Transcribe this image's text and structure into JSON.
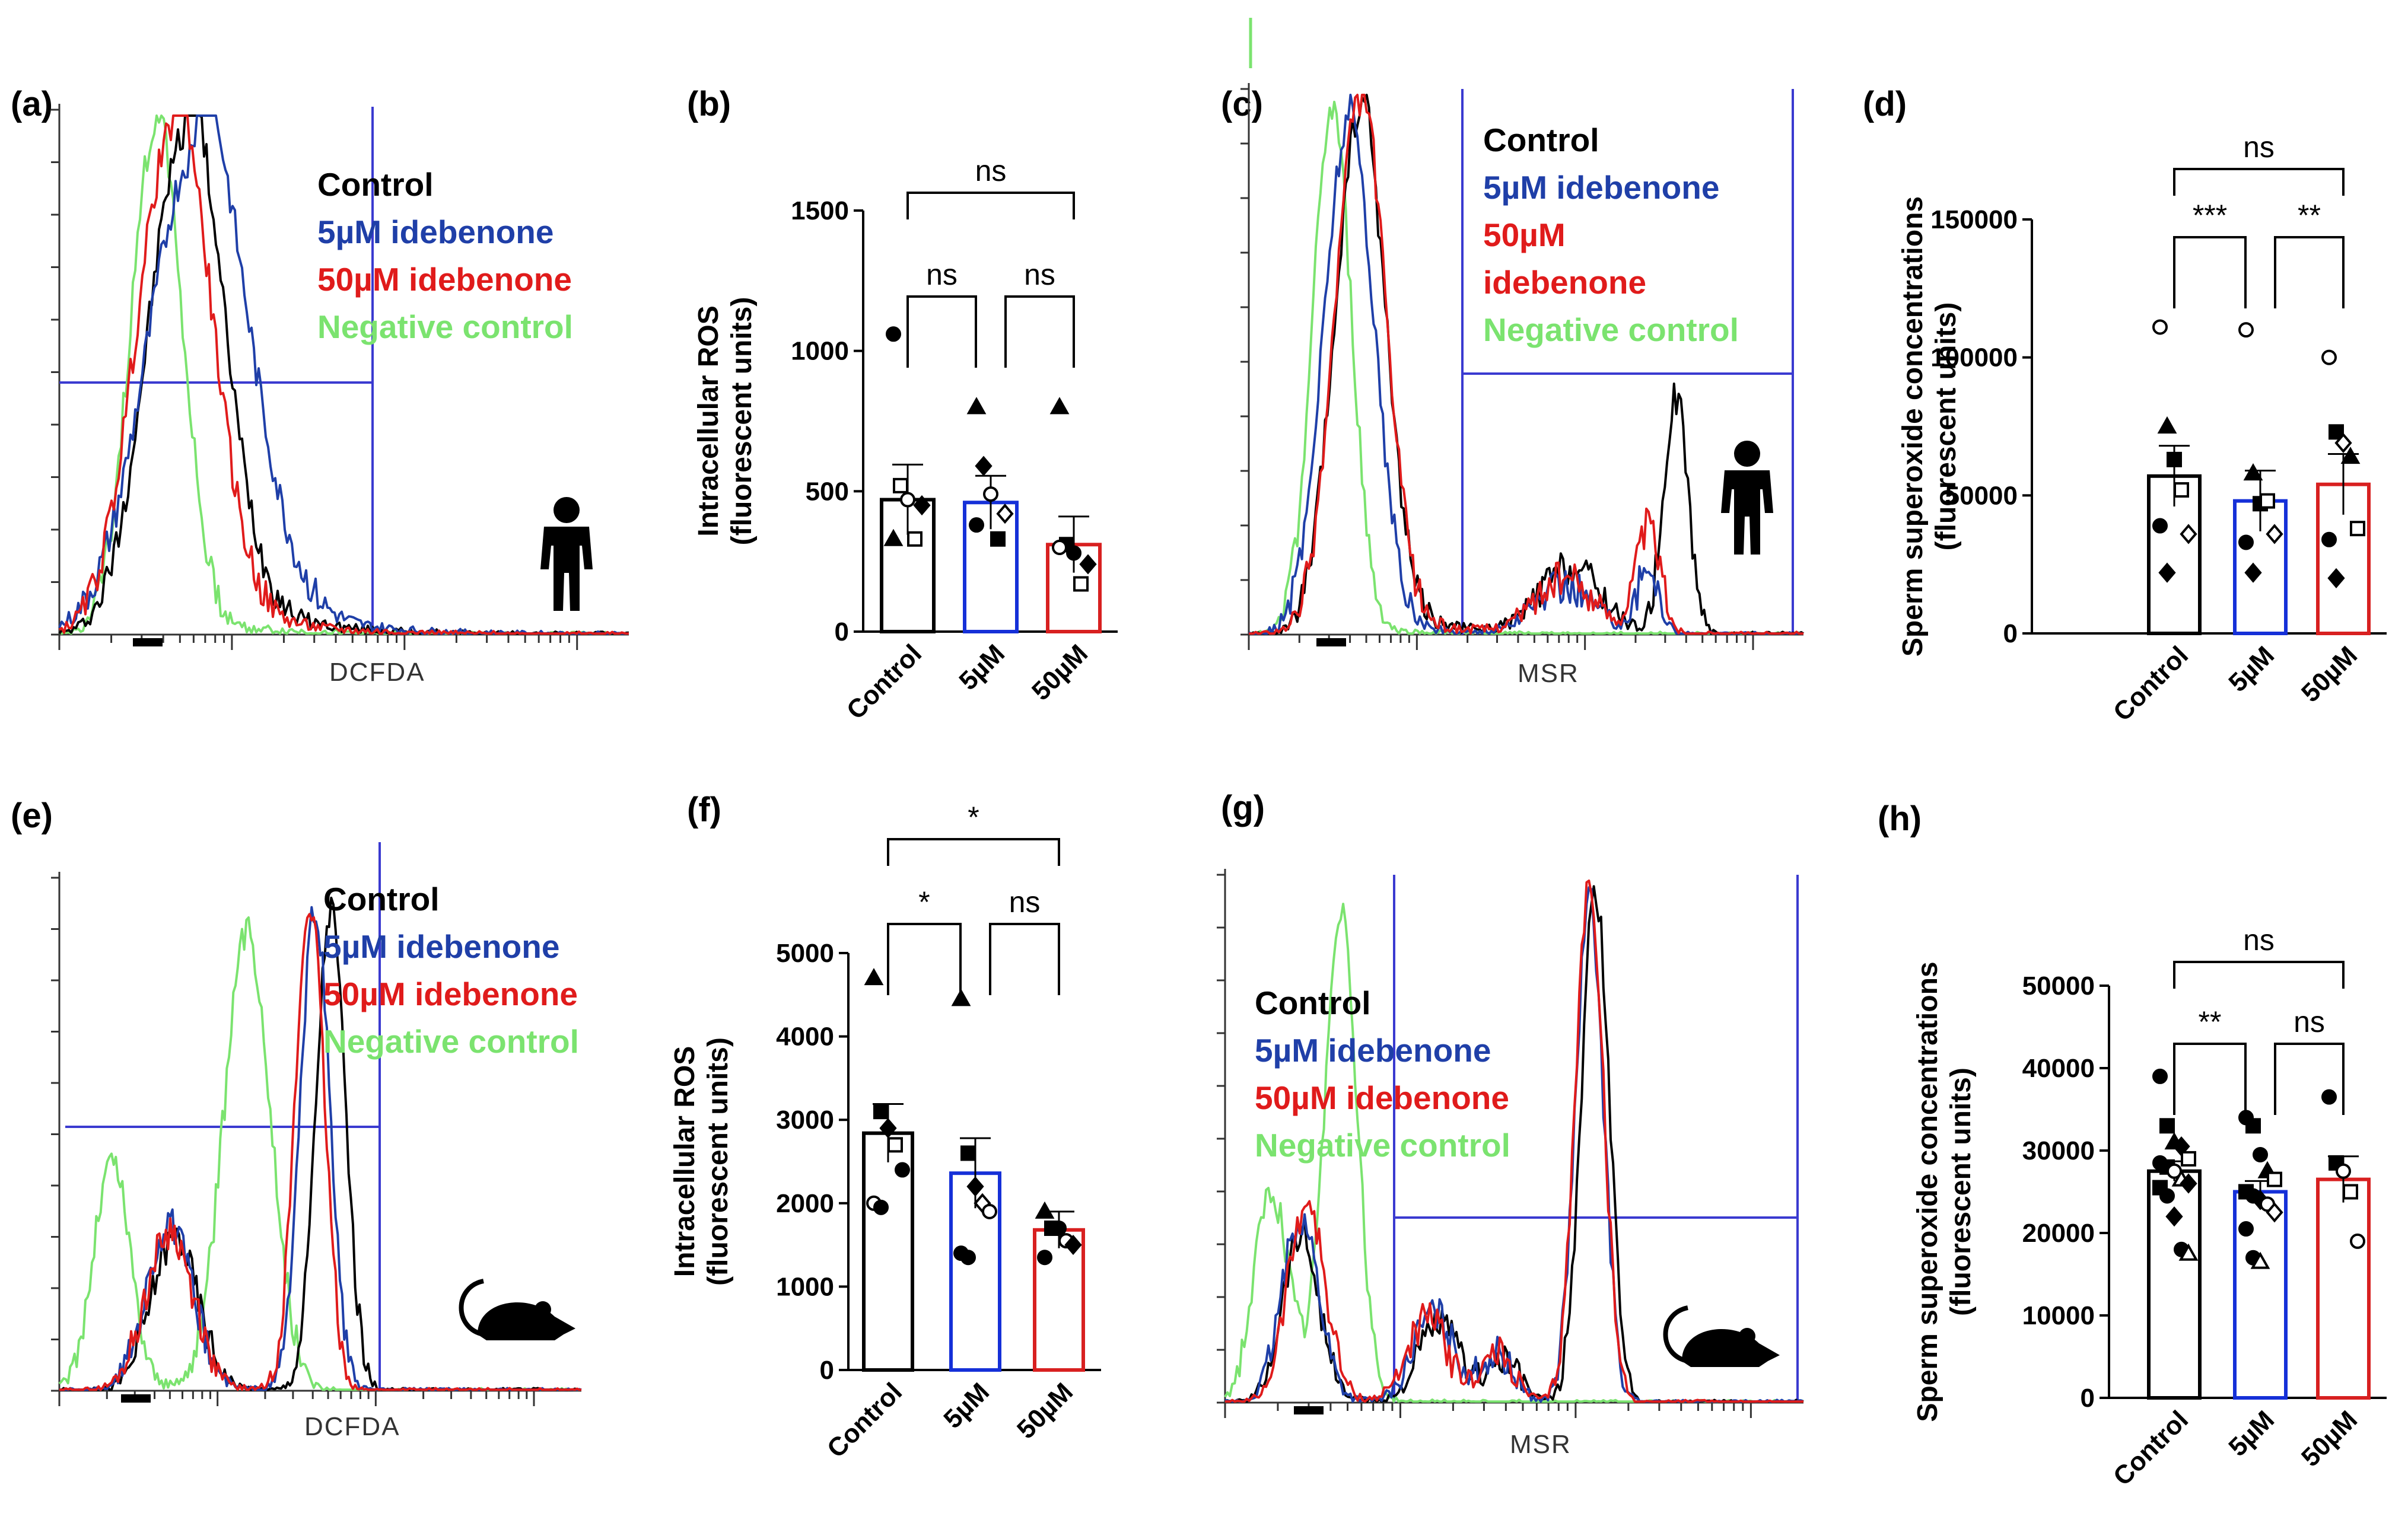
{
  "colors": {
    "control": "#000000",
    "idebenone_5uM": "#1f3fa8",
    "idebenone_50uM": "#e01b1b",
    "negative": "#7be36f",
    "gate": "#3a3ad0",
    "bar5": "#1530d8",
    "bar50": "#d82020"
  },
  "chart_data": [
    {
      "panel": "(a)",
      "type": "line",
      "title": "",
      "xlabel": "DCFDA",
      "ylabel": "",
      "species": "human",
      "legend": [
        "Control",
        "5µM idebenone",
        "50µM idebenone",
        "Negative control"
      ],
      "xlim": [
        0,
        100
      ],
      "ylim": [
        0,
        100
      ],
      "series": [
        {
          "name": "Control",
          "peaks": [
            {
              "mu": 22,
              "sigma": 6.5,
              "h": 96
            }
          ],
          "tail": 0.25
        },
        {
          "name": "5µM idebenone",
          "peaks": [
            {
              "mu": 24,
              "sigma": 8.5,
              "h": 93
            }
          ],
          "tail": 0.35
        },
        {
          "name": "50µM idebenone",
          "peaks": [
            {
              "mu": 20,
              "sigma": 6.5,
              "h": 97
            }
          ],
          "tail": 0.2
        },
        {
          "name": "Negative control",
          "peaks": [
            {
              "mu": 17,
              "sigma": 4.5,
              "h": 98
            }
          ],
          "tail": 0.08
        }
      ]
    },
    {
      "panel": "(b)",
      "type": "bar",
      "title": "",
      "xlabel": "",
      "ylabel": "Intracellular ROS (fluorescent units)",
      "ylabel_lines": [
        "Intracellular ROS",
        "(fluorescent units)"
      ],
      "categories": [
        "Control",
        "5µM",
        "50µM"
      ],
      "values": [
        470,
        460,
        310
      ],
      "errors": [
        125,
        95,
        100
      ],
      "ylim": [
        0,
        1500
      ],
      "yticks": [
        0,
        500,
        1000,
        1500
      ],
      "comparisons": [
        {
          "from": 0,
          "to": 1,
          "label": "ns"
        },
        {
          "from": 1,
          "to": 2,
          "label": "ns"
        },
        {
          "from": 0,
          "to": 2,
          "label": "ns"
        }
      ],
      "points": [
        [
          [
            1060,
            "circle-filled"
          ],
          [
            520,
            "square-open"
          ],
          [
            470,
            "circle-open"
          ],
          [
            330,
            "square-open"
          ],
          [
            450,
            "diamond-filled"
          ],
          [
            330,
            "triangle-filled"
          ]
        ],
        [
          [
            800,
            "triangle-filled"
          ],
          [
            590,
            "diamond-filled"
          ],
          [
            490,
            "circle-open"
          ],
          [
            330,
            "square-filled"
          ],
          [
            420,
            "diamond-open"
          ],
          [
            380,
            "circle-filled"
          ]
        ],
        [
          [
            800,
            "triangle-filled"
          ],
          [
            310,
            "square-filled"
          ],
          [
            280,
            "circle-filled"
          ],
          [
            170,
            "square-open"
          ],
          [
            240,
            "diamond-filled"
          ],
          [
            300,
            "circle-open"
          ]
        ]
      ]
    },
    {
      "panel": "(c)",
      "type": "line",
      "title": "",
      "xlabel": "MSR",
      "ylabel": "",
      "species": "human",
      "legend": [
        "Control",
        "5µM idebenone",
        "50µM",
        "idebenone",
        "Negative control"
      ],
      "xlim": [
        0,
        100
      ],
      "ylim": [
        0,
        100
      ],
      "series": [
        {
          "name": "Control",
          "peaks": [
            {
              "mu": 20,
              "sigma": 4.5,
              "h": 96
            },
            {
              "mu": 58,
              "sigma": 5.5,
              "h": 12
            },
            {
              "mu": 77,
              "sigma": 2.2,
              "h": 44
            }
          ],
          "tail": 0.1
        },
        {
          "name": "5µM idebenone",
          "peaks": [
            {
              "mu": 18,
              "sigma": 4.5,
              "h": 95
            },
            {
              "mu": 57,
              "sigma": 5.5,
              "h": 9
            },
            {
              "mu": 72,
              "sigma": 2.0,
              "h": 12
            }
          ],
          "tail": 0.05
        },
        {
          "name": "50µM idebenone",
          "peaks": [
            {
              "mu": 20,
              "sigma": 4.5,
              "h": 99
            },
            {
              "mu": 57,
              "sigma": 5.5,
              "h": 10
            },
            {
              "mu": 72,
              "sigma": 2.2,
              "h": 20
            }
          ],
          "tail": 0.08
        },
        {
          "name": "Negative control",
          "peaks": [
            {
              "mu": 15,
              "sigma": 3.5,
              "h": 97
            }
          ],
          "tail": 0.02
        }
      ]
    },
    {
      "panel": "(d)",
      "type": "bar",
      "title": "",
      "xlabel": "",
      "ylabel": "Sperm superoxide concentrations (fluorescent units)",
      "ylabel_lines": [
        "Sperm superoxide concentrations",
        "(fluorescent units)"
      ],
      "categories": [
        "Control",
        "5µM",
        "50µM"
      ],
      "values": [
        57000,
        48000,
        54000
      ],
      "errors": [
        11000,
        11000,
        11000
      ],
      "ylim": [
        0,
        150000
      ],
      "yticks": [
        0,
        50000,
        100000,
        150000
      ],
      "comparisons": [
        {
          "from": 0,
          "to": 1,
          "label": "***"
        },
        {
          "from": 1,
          "to": 2,
          "label": "**"
        },
        {
          "from": 0,
          "to": 2,
          "label": "ns"
        }
      ],
      "points": [
        [
          [
            111000,
            "circle-open"
          ],
          [
            75000,
            "triangle-filled"
          ],
          [
            63000,
            "square-filled"
          ],
          [
            52000,
            "square-open"
          ],
          [
            36000,
            "diamond-open"
          ],
          [
            39000,
            "circle-filled"
          ],
          [
            22000,
            "diamond-filled"
          ]
        ],
        [
          [
            110000,
            "circle-open"
          ],
          [
            58000,
            "triangle-filled"
          ],
          [
            47000,
            "square-filled"
          ],
          [
            48000,
            "square-open"
          ],
          [
            36000,
            "diamond-open"
          ],
          [
            33000,
            "circle-filled"
          ],
          [
            22000,
            "diamond-filled"
          ]
        ],
        [
          [
            100000,
            "circle-open"
          ],
          [
            73000,
            "square-filled"
          ],
          [
            69000,
            "diamond-open"
          ],
          [
            64000,
            "triangle-filled"
          ],
          [
            38000,
            "square-open"
          ],
          [
            34000,
            "circle-filled"
          ],
          [
            20000,
            "diamond-filled"
          ]
        ]
      ]
    },
    {
      "panel": "(e)",
      "type": "line",
      "title": "",
      "xlabel": "DCFDA",
      "ylabel": "",
      "species": "mouse",
      "legend": [
        "Control",
        "5µM idebenone",
        "50µM idebenone",
        "Negative control"
      ],
      "xlim": [
        0,
        100
      ],
      "ylim": [
        0,
        100
      ],
      "series": [
        {
          "name": "Control",
          "peaks": [
            {
              "mu": 22,
              "sigma": 4.5,
              "h": 30
            },
            {
              "mu": 52,
              "sigma": 2.8,
              "h": 95
            }
          ],
          "tail": 0.05
        },
        {
          "name": "5µM idebenone",
          "peaks": [
            {
              "mu": 21,
              "sigma": 4.5,
              "h": 32
            },
            {
              "mu": 49,
              "sigma": 2.8,
              "h": 95
            }
          ],
          "tail": 0.05
        },
        {
          "name": "50µM idebenone",
          "peaks": [
            {
              "mu": 21,
              "sigma": 4.5,
              "h": 31
            },
            {
              "mu": 48,
              "sigma": 2.8,
              "h": 96
            }
          ],
          "tail": 0.05
        },
        {
          "name": "Negative control",
          "peaks": [
            {
              "mu": 10,
              "sigma": 3.5,
              "h": 45
            },
            {
              "mu": 36,
              "sigma": 4.5,
              "h": 90
            }
          ],
          "tail": 0.05
        }
      ]
    },
    {
      "panel": "(f)",
      "type": "bar",
      "title": "",
      "xlabel": "",
      "ylabel": "Intracellular ROS (fluorescent units)",
      "ylabel_lines": [
        "Intracellular ROS",
        "(fluorescent units)"
      ],
      "categories": [
        "Control",
        "5µM",
        "50µM"
      ],
      "values": [
        2840,
        2360,
        1680
      ],
      "errors": [
        350,
        420,
        220
      ],
      "ylim": [
        0,
        5000
      ],
      "yticks": [
        0,
        1000,
        2000,
        3000,
        4000,
        5000
      ],
      "comparisons": [
        {
          "from": 0,
          "to": 1,
          "label": "*"
        },
        {
          "from": 1,
          "to": 2,
          "label": "ns"
        },
        {
          "from": 0,
          "to": 2,
          "label": "*"
        }
      ],
      "points": [
        [
          [
            4700,
            "triangle-filled"
          ],
          [
            3100,
            "square-filled"
          ],
          [
            2900,
            "diamond-filled"
          ],
          [
            2700,
            "square-open"
          ],
          [
            2400,
            "circle-filled"
          ],
          [
            2000,
            "circle-open"
          ],
          [
            1950,
            "circle-filled"
          ]
        ],
        [
          [
            4450,
            "triangle-filled"
          ],
          [
            2600,
            "square-filled"
          ],
          [
            2200,
            "diamond-filled"
          ],
          [
            2000,
            "diamond-open"
          ],
          [
            1900,
            "circle-open"
          ],
          [
            1400,
            "circle-filled"
          ],
          [
            1350,
            "circle-filled"
          ]
        ],
        [
          [
            1900,
            "triangle-filled"
          ],
          [
            1700,
            "square-filled"
          ],
          [
            1700,
            "circle-filled"
          ],
          [
            1550,
            "circle-open"
          ],
          [
            1500,
            "diamond-filled"
          ],
          [
            1350,
            "circle-filled"
          ]
        ]
      ]
    },
    {
      "panel": "(g)",
      "type": "line",
      "title": "",
      "xlabel": "MSR",
      "ylabel": "",
      "species": "mouse",
      "legend": [
        "Control",
        "5µM idebenone",
        "50µM idebenone",
        "Negative control"
      ],
      "xlim": [
        0,
        100
      ],
      "ylim": [
        0,
        100
      ],
      "series": [
        {
          "name": "Control",
          "peaks": [
            {
              "mu": 13,
              "sigma": 3.2,
              "h": 32
            },
            {
              "mu": 37,
              "sigma": 3.5,
              "h": 15
            },
            {
              "mu": 48,
              "sigma": 3.0,
              "h": 8
            },
            {
              "mu": 64,
              "sigma": 2.4,
              "h": 98
            }
          ],
          "tail": 0.04
        },
        {
          "name": "5µM idebenone",
          "peaks": [
            {
              "mu": 13,
              "sigma": 3.2,
              "h": 35
            },
            {
              "mu": 36,
              "sigma": 3.5,
              "h": 17
            },
            {
              "mu": 47,
              "sigma": 3.0,
              "h": 9
            },
            {
              "mu": 63,
              "sigma": 2.4,
              "h": 96
            }
          ],
          "tail": 0.04
        },
        {
          "name": "50µM idebenone",
          "peaks": [
            {
              "mu": 14,
              "sigma": 3.2,
              "h": 38
            },
            {
              "mu": 35,
              "sigma": 3.5,
              "h": 16
            },
            {
              "mu": 47,
              "sigma": 3.0,
              "h": 9
            },
            {
              "mu": 63,
              "sigma": 2.4,
              "h": 100
            }
          ],
          "tail": 0.04
        },
        {
          "name": "Negative control",
          "peaks": [
            {
              "mu": 8,
              "sigma": 3.0,
              "h": 40
            },
            {
              "mu": 20,
              "sigma": 2.8,
              "h": 95
            }
          ],
          "tail": 0.02
        }
      ]
    },
    {
      "panel": "(h)",
      "type": "bar",
      "title": "",
      "xlabel": "",
      "ylabel": "Sperm superoxide concentrations (fluorescent units)",
      "ylabel_lines": [
        "Sperm superoxide concentrations",
        "(fluorescent units)"
      ],
      "categories": [
        "Control",
        "5µM",
        "50µM"
      ],
      "values": [
        27500,
        25000,
        26500
      ],
      "errors": [
        1200,
        1300,
        2800
      ],
      "ylim": [
        0,
        50000
      ],
      "yticks": [
        0,
        10000,
        20000,
        30000,
        40000,
        50000
      ],
      "comparisons": [
        {
          "from": 0,
          "to": 1,
          "label": "**"
        },
        {
          "from": 1,
          "to": 2,
          "label": "ns"
        },
        {
          "from": 0,
          "to": 2,
          "label": "ns"
        }
      ],
      "points": [
        [
          [
            39000,
            "circle-filled"
          ],
          [
            33000,
            "square-filled"
          ],
          [
            31000,
            "triangle-filled"
          ],
          [
            30500,
            "diamond-filled"
          ],
          [
            29000,
            "square-open"
          ],
          [
            28500,
            "circle-filled"
          ],
          [
            28000,
            "square-filled"
          ],
          [
            27500,
            "circle-open"
          ],
          [
            26500,
            "triangle-open"
          ],
          [
            26000,
            "diamond-filled"
          ],
          [
            25500,
            "square-filled"
          ],
          [
            24500,
            "circle-filled"
          ],
          [
            22000,
            "diamond-filled"
          ],
          [
            18000,
            "circle-filled"
          ],
          [
            17500,
            "triangle-open"
          ]
        ],
        [
          [
            34000,
            "circle-filled"
          ],
          [
            33000,
            "square-filled"
          ],
          [
            29500,
            "circle-filled"
          ],
          [
            27500,
            "triangle-filled"
          ],
          [
            26500,
            "square-open"
          ],
          [
            25000,
            "square-filled"
          ],
          [
            24500,
            "circle-filled"
          ],
          [
            24000,
            "diamond-filled"
          ],
          [
            23500,
            "circle-open"
          ],
          [
            22500,
            "diamond-open"
          ],
          [
            20500,
            "circle-filled"
          ],
          [
            17000,
            "circle-filled"
          ],
          [
            16500,
            "triangle-open"
          ]
        ],
        [
          [
            36500,
            "circle-filled"
          ],
          [
            28500,
            "square-filled"
          ],
          [
            27500,
            "circle-open"
          ],
          [
            25000,
            "square-open"
          ],
          [
            19000,
            "circle-open"
          ]
        ]
      ]
    }
  ]
}
